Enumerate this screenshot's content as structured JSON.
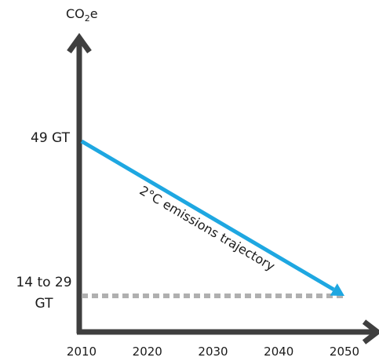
{
  "chart_data": {
    "type": "line",
    "title": "",
    "xlabel": "",
    "ylabel": "CO₂e",
    "ylabel_parts": {
      "main": "CO",
      "sub": "2",
      "suffix": "e"
    },
    "x_ticks": [
      "2010",
      "2020",
      "2030",
      "2040",
      "2050"
    ],
    "xlim": [
      2010,
      2050
    ],
    "y_labels": {
      "top_value": "49 GT",
      "bottom_value_line1": "14 to 29",
      "bottom_value_line2": "GT"
    },
    "series": [
      {
        "name": "2°C emissions trajectory",
        "color": "#1ea7e1",
        "x": [
          2010,
          2050
        ],
        "y": [
          49,
          21.5
        ]
      }
    ],
    "reference_line": {
      "label": "14 to 29 GT",
      "style": "dotted",
      "color": "#b0b0b0",
      "x": [
        2010,
        2050
      ],
      "y": 21.5
    },
    "annotations": [
      "2°C emissions trajectory"
    ],
    "grid": false,
    "legend": "none"
  }
}
